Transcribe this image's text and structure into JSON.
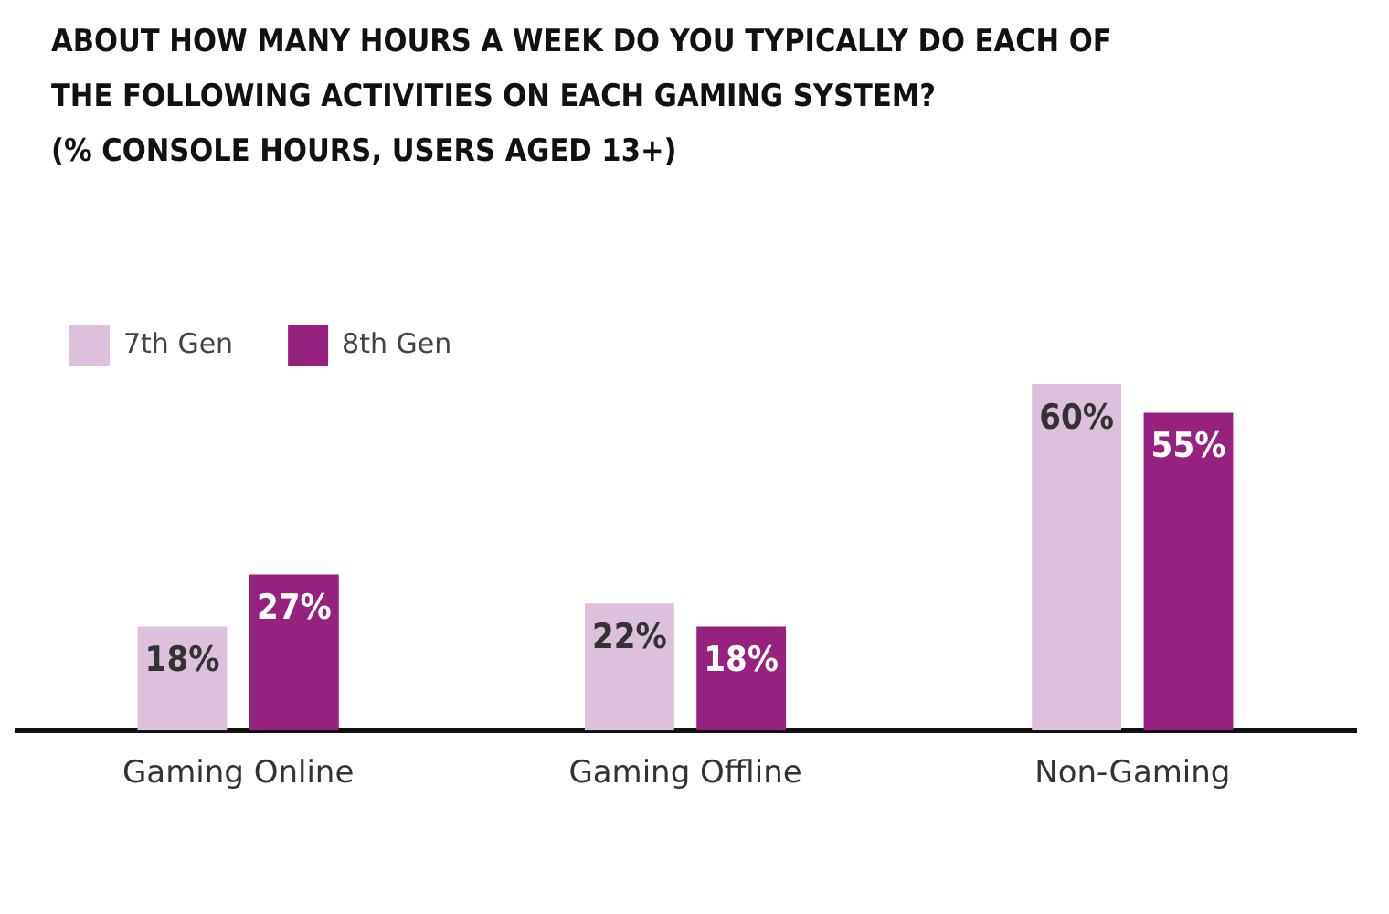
{
  "chart_data": {
    "type": "bar",
    "title": "ABOUT HOW MANY HOURS A WEEK DO YOU TYPICALLY DO EACH OF THE FOLLOWING ACTIVITIES ON EACH GAMING SYSTEM?",
    "subtitle": "(% CONSOLE HOURS, USERS AGED 13+)",
    "categories": [
      "Gaming Online",
      "Gaming Offline",
      "Non-Gaming"
    ],
    "series": [
      {
        "name": "7th Gen",
        "color": "#dcc0dc",
        "values": [
          18,
          22,
          60
        ],
        "value_labels": [
          "18%",
          "22%",
          "60%"
        ]
      },
      {
        "name": "8th Gen",
        "color": "#97217e",
        "values": [
          27,
          18,
          55
        ],
        "value_labels": [
          "27%",
          "18%",
          "55%"
        ]
      }
    ],
    "legend": "top left"
  }
}
